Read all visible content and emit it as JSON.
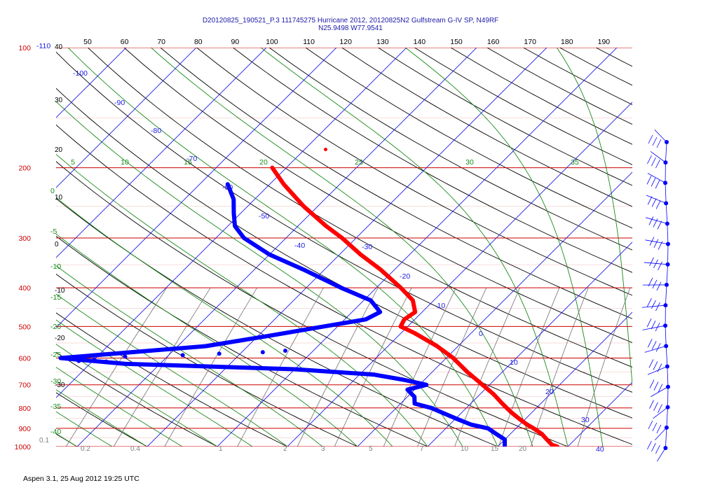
{
  "header": {
    "line1": "D20120825_190521_P.3 111745275 Hurricane 2012, 20120825N2 Gulfstream G-IV SP, N49RF",
    "line2": "N25.9498 W77.9541"
  },
  "footer": "Aspen 3.1, 25 Aug 2012  19:25 UTC",
  "chart_data": {
    "type": "line",
    "title": "D20120825_190521_P.3 111745275 Hurricane 2012, 20120825N2 Gulfstream G-IV SP, N49RF",
    "subtitle": "N25.9498 W77.9541",
    "ylabel": "",
    "xlabel": "",
    "y_scale": "log (pressure)",
    "y_range_hPa": [
      100,
      1000
    ],
    "x_range_top_ticks": [
      50,
      190
    ],
    "grid": true,
    "colors": {
      "isobar": "#cc0000",
      "isotherm": "#1a1ae6",
      "dry_adiabat": "#000000",
      "moist_adiabat": "#1a8a1a",
      "mixing_ratio": "#7f7f7f",
      "temperature": "#ff0000",
      "dewpoint": "#0000ff",
      "barbs": "#0000ff"
    },
    "pressure_labels": [
      "100",
      "200",
      "300",
      "400",
      "500",
      "600",
      "700",
      "800",
      "900",
      "1000"
    ],
    "top_tick_labels": [
      "50",
      "60",
      "70",
      "80",
      "90",
      "100",
      "110",
      "120",
      "130",
      "140",
      "150",
      "160",
      "170",
      "180",
      "190"
    ],
    "left_theta_labels": [
      "40",
      "30",
      "20",
      "10",
      "0",
      "-10",
      "-20",
      "-30"
    ],
    "isotherm_labels": [
      "-110",
      "-100",
      "-90",
      "-80",
      "-70",
      "-60",
      "-50",
      "-40",
      "-30",
      "-20",
      "-10",
      "0",
      "10",
      "20",
      "30",
      "40"
    ],
    "moist_labels_top": [
      "5",
      "10",
      "15",
      "20",
      "25",
      "30",
      "35"
    ],
    "moist_labels_left": [
      "0",
      "-5",
      "-10",
      "-15",
      "-20",
      "-25",
      "-30",
      "-35",
      "-40"
    ],
    "mixing_labels": [
      "0.1",
      "0.2",
      "0.4",
      "1",
      "2",
      "3",
      "5",
      "7",
      "10",
      "15",
      "20"
    ],
    "series": [
      {
        "name": "",
        "role": "temperature",
        "points": [
          {
            "p": 200,
            "t": -52
          },
          {
            "p": 220,
            "t": -48
          },
          {
            "p": 250,
            "t": -42
          },
          {
            "p": 280,
            "t": -36
          },
          {
            "p": 300,
            "t": -32
          },
          {
            "p": 330,
            "t": -27
          },
          {
            "p": 360,
            "t": -22
          },
          {
            "p": 400,
            "t": -16.5
          },
          {
            "p": 430,
            "t": -13
          },
          {
            "p": 460,
            "t": -11
          },
          {
            "p": 480,
            "t": -11.5
          },
          {
            "p": 500,
            "t": -11
          },
          {
            "p": 520,
            "t": -8
          },
          {
            "p": 560,
            "t": -3
          },
          {
            "p": 600,
            "t": 1
          },
          {
            "p": 650,
            "t": 5
          },
          {
            "p": 700,
            "t": 9
          },
          {
            "p": 740,
            "t": 12
          },
          {
            "p": 780,
            "t": 14.5
          },
          {
            "p": 820,
            "t": 17
          },
          {
            "p": 850,
            "t": 19
          },
          {
            "p": 880,
            "t": 21
          },
          {
            "p": 900,
            "t": 22.5
          },
          {
            "p": 930,
            "t": 24.5
          },
          {
            "p": 960,
            "t": 26
          },
          {
            "p": 990,
            "t": 27.5
          },
          {
            "p": 1000,
            "t": 28.5
          }
        ]
      },
      {
        "name": "",
        "role": "dewpoint",
        "points": [
          {
            "p": 220,
            "t": -56
          },
          {
            "p": 240,
            "t": -53
          },
          {
            "p": 260,
            "t": -51
          },
          {
            "p": 280,
            "t": -49
          },
          {
            "p": 300,
            "t": -46
          },
          {
            "p": 330,
            "t": -40
          },
          {
            "p": 360,
            "t": -33
          },
          {
            "p": 400,
            "t": -25
          },
          {
            "p": 430,
            "t": -19
          },
          {
            "p": 460,
            "t": -16
          },
          {
            "p": 480,
            "t": -17
          },
          {
            "p": 500,
            "t": -22
          },
          {
            "p": 530,
            "t": -29
          },
          {
            "p": 560,
            "t": -36
          },
          {
            "p": 600,
            "t": -55
          },
          {
            "p": 620,
            "t": -45
          },
          {
            "p": 640,
            "t": -20
          },
          {
            "p": 660,
            "t": -8
          },
          {
            "p": 680,
            "t": -3
          },
          {
            "p": 700,
            "t": 1
          },
          {
            "p": 720,
            "t": -1
          },
          {
            "p": 750,
            "t": 1
          },
          {
            "p": 780,
            "t": 2
          },
          {
            "p": 800,
            "t": 5
          },
          {
            "p": 850,
            "t": 10
          },
          {
            "p": 880,
            "t": 13
          },
          {
            "p": 900,
            "t": 16
          },
          {
            "p": 930,
            "t": 18
          },
          {
            "p": 960,
            "t": 20
          },
          {
            "p": 1000,
            "t": 21
          }
        ]
      }
    ],
    "dewpoint_scatter": [
      {
        "p": 600,
        "t": -62
      },
      {
        "p": 600,
        "t": -58
      },
      {
        "p": 600,
        "t": -54
      },
      {
        "p": 605,
        "t": -50
      },
      {
        "p": 595,
        "t": -46
      },
      {
        "p": 590,
        "t": -38
      },
      {
        "p": 585,
        "t": -33
      },
      {
        "p": 580,
        "t": -27
      },
      {
        "p": 575,
        "t": -24
      },
      {
        "p": 610,
        "t": -52
      },
      {
        "p": 612,
        "t": -48
      }
    ],
    "isolated_point": {
      "p": 180,
      "t": -47
    },
    "wind_barbs_count": 16
  }
}
